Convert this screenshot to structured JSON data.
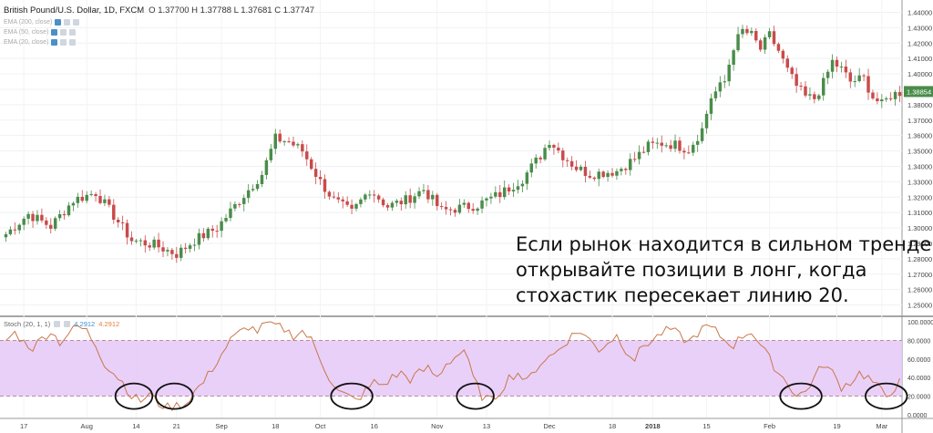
{
  "header": {
    "title": "British Pound/U.S. Dollar, 1D, FXCM",
    "ohlc": "O 1.37700  H 1.37788  L 1.37681  C 1.37747"
  },
  "indicators": [
    {
      "label": "EMA (200, close)"
    },
    {
      "label": "EMA (50, close)"
    },
    {
      "label": "EMA (20, close)"
    }
  ],
  "stoch": {
    "label": "Stoch (20, 1, 1)",
    "k_value": "4.2912",
    "d_value": "4.2912"
  },
  "annotation": {
    "lines": [
      "Если рынок находится в сильном тренде,",
      "открывайте позиции в лонг, когда",
      "стохастик пересекает линию 20."
    ]
  },
  "chart_data": [
    {
      "type": "candlestick",
      "title": "British Pound/U.S. Dollar, 1D, FXCM",
      "ylim": [
        1.245,
        1.445
      ],
      "y_ticks": [
        "1.44000",
        "1.43000",
        "1.42000",
        "1.41000",
        "1.40000",
        "1.39000",
        "1.38000",
        "1.37000",
        "1.36000",
        "1.35000",
        "1.34000",
        "1.33000",
        "1.32000",
        "1.31000",
        "1.30000",
        "1.29000",
        "1.28000",
        "1.27000",
        "1.26000",
        "1.25000"
      ],
      "last_price": "1.38854",
      "x_tick_labels": [
        "17",
        "Aug",
        "14",
        "21",
        "Sep",
        "18",
        "Oct",
        "16",
        "Nov",
        "13",
        "Dec",
        "18",
        "2018",
        "15",
        "Feb",
        "19",
        "Mar"
      ],
      "x_tick_indices": [
        4,
        18,
        29,
        38,
        48,
        60,
        70,
        82,
        96,
        107,
        121,
        135,
        144,
        156,
        170,
        185,
        195
      ],
      "colors": {
        "up": "#4a8c4a",
        "down": "#c94a4a"
      },
      "anchor_closes": [
        [
          0,
          1.296
        ],
        [
          5,
          1.309
        ],
        [
          10,
          1.301
        ],
        [
          15,
          1.318
        ],
        [
          20,
          1.323
        ],
        [
          24,
          1.308
        ],
        [
          28,
          1.292
        ],
        [
          33,
          1.289
        ],
        [
          38,
          1.283
        ],
        [
          42,
          1.292
        ],
        [
          47,
          1.3
        ],
        [
          52,
          1.318
        ],
        [
          57,
          1.335
        ],
        [
          60,
          1.358
        ],
        [
          63,
          1.356
        ],
        [
          66,
          1.35
        ],
        [
          70,
          1.33
        ],
        [
          73,
          1.318
        ],
        [
          77,
          1.31
        ],
        [
          81,
          1.325
        ],
        [
          85,
          1.314
        ],
        [
          89,
          1.318
        ],
        [
          93,
          1.325
        ],
        [
          97,
          1.311
        ],
        [
          101,
          1.313
        ],
        [
          105,
          1.315
        ],
        [
          110,
          1.322
        ],
        [
          115,
          1.332
        ],
        [
          119,
          1.347
        ],
        [
          121,
          1.357
        ],
        [
          124,
          1.347
        ],
        [
          127,
          1.339
        ],
        [
          130,
          1.335
        ],
        [
          133,
          1.336
        ],
        [
          136,
          1.337
        ],
        [
          140,
          1.345
        ],
        [
          143,
          1.353
        ],
        [
          146,
          1.355
        ],
        [
          149,
          1.354
        ],
        [
          152,
          1.351
        ],
        [
          155,
          1.364
        ],
        [
          157,
          1.385
        ],
        [
          160,
          1.395
        ],
        [
          162,
          1.418
        ],
        [
          164,
          1.428
        ],
        [
          166,
          1.425
        ],
        [
          168,
          1.416
        ],
        [
          170,
          1.425
        ],
        [
          172,
          1.415
        ],
        [
          174,
          1.402
        ],
        [
          176,
          1.392
        ],
        [
          178,
          1.385
        ],
        [
          180,
          1.384
        ],
        [
          182,
          1.394
        ],
        [
          184,
          1.408
        ],
        [
          186,
          1.403
        ],
        [
          188,
          1.395
        ],
        [
          191,
          1.397
        ],
        [
          193,
          1.385
        ],
        [
          195,
          1.38
        ],
        [
          197,
          1.386
        ],
        [
          199,
          1.388
        ]
      ]
    },
    {
      "type": "line",
      "title": "Stoch (20, 1, 1)",
      "ylim": [
        0,
        100
      ],
      "y_ticks": [
        "100.0000",
        "80.0000",
        "60.0000",
        "40.0000",
        "20.0000",
        "0.0000"
      ],
      "overbought": 80,
      "oversold": 20,
      "line_color": "#c9774a",
      "band_color": "#e5c8f8",
      "anchor_values": [
        [
          0,
          80
        ],
        [
          2,
          88
        ],
        [
          4,
          78
        ],
        [
          6,
          72
        ],
        [
          8,
          82
        ],
        [
          10,
          90
        ],
        [
          12,
          78
        ],
        [
          14,
          88
        ],
        [
          16,
          95
        ],
        [
          18,
          90
        ],
        [
          20,
          75
        ],
        [
          22,
          55
        ],
        [
          24,
          45
        ],
        [
          26,
          35
        ],
        [
          28,
          20
        ],
        [
          30,
          15
        ],
        [
          32,
          22
        ],
        [
          34,
          12
        ],
        [
          36,
          8
        ],
        [
          38,
          10
        ],
        [
          40,
          12
        ],
        [
          42,
          25
        ],
        [
          44,
          35
        ],
        [
          46,
          50
        ],
        [
          48,
          65
        ],
        [
          50,
          80
        ],
        [
          52,
          88
        ],
        [
          54,
          95
        ],
        [
          56,
          90
        ],
        [
          58,
          98
        ],
        [
          60,
          96
        ],
        [
          62,
          92
        ],
        [
          64,
          85
        ],
        [
          66,
          90
        ],
        [
          68,
          80
        ],
        [
          70,
          60
        ],
        [
          72,
          40
        ],
        [
          74,
          25
        ],
        [
          76,
          20
        ],
        [
          78,
          15
        ],
        [
          80,
          25
        ],
        [
          82,
          35
        ],
        [
          84,
          32
        ],
        [
          86,
          40
        ],
        [
          88,
          45
        ],
        [
          90,
          38
        ],
        [
          92,
          45
        ],
        [
          94,
          50
        ],
        [
          96,
          40
        ],
        [
          98,
          55
        ],
        [
          100,
          62
        ],
        [
          102,
          70
        ],
        [
          104,
          40
        ],
        [
          106,
          20
        ],
        [
          108,
          15
        ],
        [
          110,
          25
        ],
        [
          112,
          40
        ],
        [
          114,
          45
        ],
        [
          116,
          35
        ],
        [
          118,
          50
        ],
        [
          120,
          60
        ],
        [
          122,
          65
        ],
        [
          124,
          75
        ],
        [
          126,
          85
        ],
        [
          128,
          90
        ],
        [
          130,
          80
        ],
        [
          132,
          70
        ],
        [
          134,
          78
        ],
        [
          136,
          85
        ],
        [
          138,
          70
        ],
        [
          140,
          60
        ],
        [
          142,
          75
        ],
        [
          144,
          80
        ],
        [
          146,
          88
        ],
        [
          148,
          92
        ],
        [
          150,
          85
        ],
        [
          152,
          78
        ],
        [
          154,
          88
        ],
        [
          156,
          95
        ],
        [
          158,
          90
        ],
        [
          160,
          80
        ],
        [
          162,
          75
        ],
        [
          164,
          85
        ],
        [
          166,
          90
        ],
        [
          168,
          75
        ],
        [
          170,
          60
        ],
        [
          172,
          45
        ],
        [
          174,
          35
        ],
        [
          176,
          20
        ],
        [
          178,
          25
        ],
        [
          180,
          40
        ],
        [
          182,
          55
        ],
        [
          184,
          45
        ],
        [
          186,
          30
        ],
        [
          188,
          35
        ],
        [
          190,
          45
        ],
        [
          192,
          40
        ],
        [
          194,
          30
        ],
        [
          196,
          20
        ],
        [
          198,
          30
        ],
        [
          200,
          40
        ]
      ],
      "circled_crossings": [
        {
          "from": 26,
          "to": 31
        },
        {
          "from": 35,
          "to": 40
        },
        {
          "from": 74,
          "to": 80
        },
        {
          "from": 102,
          "to": 107
        },
        {
          "from": 174,
          "to": 180
        },
        {
          "from": 193,
          "to": 199
        }
      ]
    }
  ]
}
